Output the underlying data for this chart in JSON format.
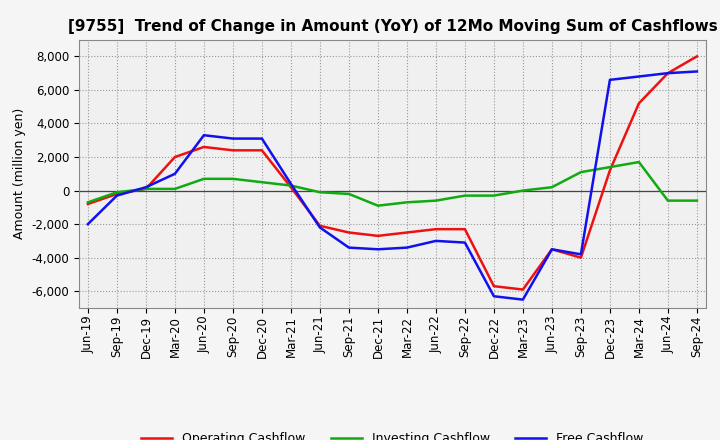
{
  "title": "[9755]  Trend of Change in Amount (YoY) of 12Mo Moving Sum of Cashflows",
  "ylabel": "Amount (million yen)",
  "x_labels": [
    "Jun-19",
    "Sep-19",
    "Dec-19",
    "Mar-20",
    "Jun-20",
    "Sep-20",
    "Dec-20",
    "Mar-21",
    "Jun-21",
    "Sep-21",
    "Dec-21",
    "Mar-22",
    "Jun-22",
    "Sep-22",
    "Dec-22",
    "Mar-23",
    "Jun-23",
    "Sep-23",
    "Dec-23",
    "Mar-24",
    "Jun-24",
    "Sep-24"
  ],
  "operating": [
    -800,
    -200,
    100,
    2000,
    2600,
    2400,
    2400,
    200,
    -2100,
    -2500,
    -2700,
    -2500,
    -2300,
    -2300,
    -5700,
    -5900,
    -3500,
    -4000,
    1200,
    5200,
    7000,
    8000
  ],
  "investing": [
    -700,
    -100,
    100,
    100,
    700,
    700,
    500,
    300,
    -100,
    -200,
    -900,
    -700,
    -600,
    -300,
    -300,
    0,
    200,
    1100,
    1400,
    1700,
    -600,
    -600
  ],
  "free": [
    -2000,
    -300,
    200,
    1000,
    3300,
    3100,
    3100,
    400,
    -2200,
    -3400,
    -3500,
    -3400,
    -3000,
    -3100,
    -6300,
    -6500,
    -3500,
    -3800,
    6600,
    6800,
    7000,
    7100
  ],
  "ylim": [
    -7000,
    9000
  ],
  "yticks": [
    -6000,
    -4000,
    -2000,
    0,
    2000,
    4000,
    6000,
    8000
  ],
  "operating_color": "#ee1111",
  "investing_color": "#11aa11",
  "free_color": "#1111ee",
  "bg_color": "#f5f5f5",
  "plot_bg_color": "#f0f0f0",
  "grid_color": "#999999",
  "linewidth": 1.8,
  "title_fontsize": 11,
  "axis_fontsize": 9,
  "tick_fontsize": 8.5
}
